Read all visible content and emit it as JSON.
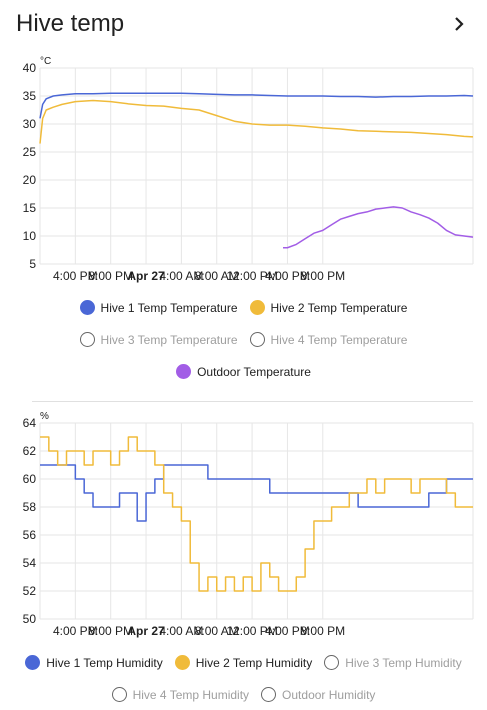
{
  "card": {
    "title": "Hive temp"
  },
  "icons": {
    "more": "chevron-right-icon"
  },
  "colors": {
    "hive1": "#4a67d6",
    "hive2": "#f0bb3a",
    "outdoor": "#a25de6",
    "grid": "#e6e6e6",
    "text": "#212121",
    "muted": "#9e9e9e"
  },
  "chart_data": [
    {
      "type": "line",
      "title": "",
      "xlabel": "",
      "ylabel": "°C",
      "ylim": [
        5,
        40
      ],
      "yticks": [
        5,
        10,
        15,
        20,
        25,
        30,
        35,
        40
      ],
      "xlim_hours": [
        0,
        49
      ],
      "xticks": [
        "4:00 PM",
        "8:00 PM",
        "Apr 27",
        "4:00 AM",
        "8:00 AM",
        "12:00 PM",
        "4:00 PM",
        "8:00 PM"
      ],
      "xtick_hours": [
        4,
        8,
        12,
        16,
        20,
        24,
        28,
        32
      ],
      "legend": "bottom",
      "grid": true,
      "series": [
        {
          "name": "Hive 1 Temp Temperature",
          "color": "#4a67d6",
          "visible": true,
          "x": [
            0,
            0.3,
            0.7,
            1.5,
            2.5,
            4,
            6,
            8,
            10,
            12,
            14,
            16,
            18,
            20,
            22,
            24,
            26,
            28,
            30,
            32,
            34,
            36,
            38,
            40,
            42,
            44,
            46,
            48,
            49
          ],
          "y": [
            31,
            33.5,
            34.5,
            35,
            35.2,
            35.4,
            35.4,
            35.5,
            35.5,
            35.5,
            35.5,
            35.5,
            35.4,
            35.3,
            35.2,
            35.2,
            35.1,
            35,
            35,
            35,
            34.9,
            34.9,
            34.8,
            34.9,
            34.9,
            35,
            35,
            35.1,
            35
          ]
        },
        {
          "name": "Hive 2 Temp Temperature",
          "color": "#f0bb3a",
          "visible": true,
          "x": [
            0,
            0.3,
            0.7,
            1.5,
            2.5,
            4,
            6,
            8,
            10,
            12,
            14,
            16,
            18,
            20,
            22,
            24,
            26,
            28,
            30,
            32,
            34,
            36,
            38,
            40,
            42,
            44,
            46,
            48,
            49
          ],
          "y": [
            26.5,
            31,
            32.5,
            33,
            33.5,
            34,
            34.2,
            34,
            33.6,
            33.3,
            33.2,
            32.8,
            32.5,
            31.5,
            30.5,
            30,
            29.8,
            29.8,
            29.6,
            29.3,
            29.1,
            28.8,
            28.7,
            28.6,
            28.5,
            28.3,
            28.1,
            27.8,
            27.7
          ]
        },
        {
          "name": "Hive 3 Temp Temperature",
          "visible": false,
          "x": [],
          "y": []
        },
        {
          "name": "Hive 4 Temp Temperature",
          "visible": false,
          "x": [],
          "y": []
        },
        {
          "name": "Outdoor Temperature",
          "color": "#a25de6",
          "visible": true,
          "x": [
            27.5,
            28,
            29,
            30,
            31,
            32,
            33,
            34,
            35,
            36,
            37,
            38,
            39,
            40,
            41,
            42,
            43,
            44,
            45,
            46,
            47,
            48,
            49
          ],
          "y": [
            7.9,
            7.9,
            8.5,
            9.5,
            10.5,
            11,
            12,
            13,
            13.5,
            14,
            14.3,
            14.8,
            15,
            15.2,
            15,
            14.3,
            13.8,
            13.2,
            12.3,
            11,
            10.2,
            10,
            9.8
          ]
        }
      ]
    },
    {
      "type": "line",
      "title": "",
      "xlabel": "",
      "ylabel": "%",
      "ylim": [
        50,
        64
      ],
      "yticks": [
        50,
        52,
        54,
        56,
        58,
        60,
        62,
        64
      ],
      "xlim_hours": [
        0,
        49
      ],
      "xticks": [
        "4:00 PM",
        "8:00 PM",
        "Apr 27",
        "4:00 AM",
        "8:00 AM",
        "12:00 PM",
        "4:00 PM",
        "8:00 PM"
      ],
      "xtick_hours": [
        4,
        8,
        12,
        16,
        20,
        24,
        28,
        32
      ],
      "legend": "bottom",
      "grid": true,
      "series": [
        {
          "name": "Hive 1 Temp Humidity",
          "color": "#4a67d6",
          "visible": true,
          "step": true,
          "x": [
            0,
            1,
            2,
            3,
            4,
            5,
            6,
            7,
            8,
            9,
            10,
            11,
            12,
            13,
            14,
            15,
            16,
            17,
            18,
            19,
            20,
            22,
            24,
            26,
            28,
            30,
            32,
            34,
            36,
            38,
            40,
            42,
            44,
            46,
            48,
            49
          ],
          "y": [
            61,
            61,
            61,
            61,
            60,
            59,
            58,
            58,
            58,
            59,
            59,
            57,
            59,
            60,
            61,
            61,
            61,
            61,
            61,
            60,
            60,
            60,
            60,
            59,
            59,
            59,
            59,
            59,
            58,
            58,
            58,
            58,
            59,
            60,
            60,
            60
          ]
        },
        {
          "name": "Hive 2 Temp Humidity",
          "color": "#f0bb3a",
          "visible": true,
          "step": true,
          "x": [
            0,
            1,
            2,
            3,
            4,
            5,
            6,
            7,
            8,
            9,
            10,
            11,
            12,
            13,
            14,
            15,
            16,
            17,
            18,
            19,
            20,
            21,
            22,
            23,
            24,
            25,
            26,
            27,
            28,
            29,
            30,
            31,
            32,
            33,
            34,
            35,
            36,
            37,
            38,
            39,
            40,
            41,
            42,
            43,
            44,
            45,
            46,
            47,
            48,
            49
          ],
          "y": [
            63,
            62,
            61,
            62,
            62,
            61,
            62,
            62,
            61,
            62,
            63,
            62,
            62,
            61,
            59,
            58,
            57,
            54,
            52,
            53,
            52,
            53,
            52,
            53,
            52,
            54,
            53,
            52,
            52,
            53,
            55,
            57,
            57,
            58,
            58,
            59,
            59,
            60,
            59,
            60,
            60,
            60,
            59,
            60,
            60,
            60,
            59,
            58,
            58,
            58
          ]
        },
        {
          "name": "Hive 3 Temp Humidity",
          "visible": false,
          "x": [],
          "y": []
        },
        {
          "name": "Hive 4 Temp Humidity",
          "visible": false,
          "x": [],
          "y": []
        },
        {
          "name": "Outdoor Humidity",
          "visible": false,
          "x": [],
          "y": []
        }
      ]
    }
  ]
}
